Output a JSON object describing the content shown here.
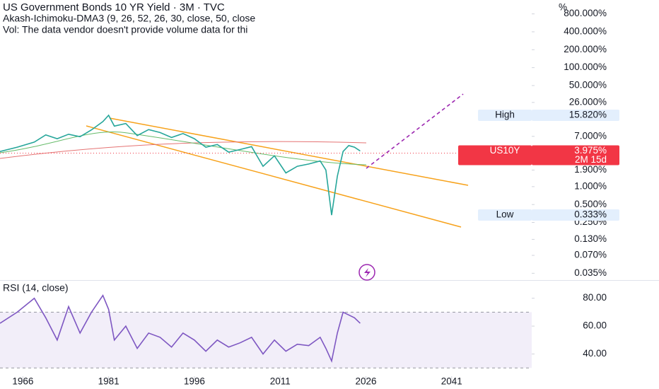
{
  "chart_data": [
    {
      "type": "line",
      "log_scale": true,
      "title": "US Government Bonds 10 YR Yield · 3M · TVC",
      "indicators": [
        "Akash-Ichimoku-DMA3 (9, 26, 52, 26, 30, close, 50, close",
        "Vol: The data vendor doesn't provide volume data for thi"
      ],
      "y_unit": "%",
      "x": [
        1962,
        1965,
        1968,
        1970,
        1972,
        1974,
        1976,
        1978,
        1980,
        1981,
        1982,
        1984,
        1986,
        1988,
        1990,
        1992,
        1994,
        1996,
        1998,
        2000,
        2002,
        2004,
        2006,
        2008,
        2010,
        2012,
        2014,
        2016,
        2018,
        2019,
        2020,
        2021,
        2022,
        2023,
        2024,
        2025
      ],
      "series": [
        {
          "name": "US10Y",
          "color": "#26a69a",
          "values": [
            3.9,
            4.6,
            5.6,
            7.4,
            6.4,
            7.6,
            6.9,
            9.0,
            12.4,
            15.82,
            10.4,
            11.5,
            7.2,
            9.1,
            8.1,
            6.7,
            7.8,
            6.4,
            4.6,
            5.1,
            3.8,
            4.2,
            4.7,
            2.2,
            3.3,
            1.7,
            2.2,
            2.4,
            2.7,
            1.9,
            0.333,
            1.5,
            3.9,
            4.9,
            4.6,
            3.975
          ]
        }
      ],
      "xlim": [
        1962,
        2055
      ],
      "xticks": [
        1966,
        1981,
        1996,
        2011,
        2026,
        2041
      ],
      "ylim": [
        0.03,
        1100
      ],
      "yticks": [
        {
          "value": 800,
          "label": "800.000%"
        },
        {
          "value": 400,
          "label": "400.000%"
        },
        {
          "value": 200,
          "label": "200.000%"
        },
        {
          "value": 100,
          "label": "100.000%"
        },
        {
          "value": 50,
          "label": "50.000%"
        },
        {
          "value": 26,
          "label": "26.000%"
        },
        {
          "value": 7,
          "label": "7.000%"
        },
        {
          "value": 1.9,
          "label": "1.900%"
        },
        {
          "value": 1,
          "label": "1.000%"
        },
        {
          "value": 0.5,
          "label": "0.500%"
        },
        {
          "value": 0.25,
          "label": "0.250%"
        },
        {
          "value": 0.13,
          "label": "0.130%"
        },
        {
          "value": 0.07,
          "label": "0.070%"
        },
        {
          "value": 0.035,
          "label": "0.035%"
        }
      ],
      "price_tags": [
        {
          "label": "High",
          "value": 15.82,
          "value_label": "15.820%",
          "color": "#e3effd"
        },
        {
          "label": "US10Y",
          "value": 3.975,
          "value_label": "3.975%",
          "countdown": "2M 15d",
          "color": "#f23645"
        },
        {
          "label": "Low",
          "value": 0.333,
          "value_label": "0.333%",
          "color": "#e3effd"
        }
      ]
    },
    {
      "type": "line",
      "title": "RSI (14, close)",
      "x": [
        1962,
        1965,
        1968,
        1970,
        1972,
        1974,
        1976,
        1978,
        1980,
        1981,
        1982,
        1984,
        1986,
        1988,
        1990,
        1992,
        1994,
        1996,
        1998,
        2000,
        2002,
        2004,
        2006,
        2008,
        2010,
        2012,
        2014,
        2016,
        2018,
        2019,
        2020,
        2021,
        2022,
        2023,
        2024,
        2025
      ],
      "series": [
        {
          "name": "RSI",
          "color": "#7e57c2",
          "values": [
            62,
            70,
            80,
            66,
            50,
            74,
            55,
            70,
            82,
            72,
            50,
            60,
            44,
            55,
            52,
            45,
            55,
            50,
            42,
            50,
            45,
            48,
            52,
            40,
            50,
            42,
            47,
            46,
            52,
            44,
            35,
            55,
            70,
            68,
            66,
            62
          ]
        }
      ],
      "xlim": [
        1962,
        2055
      ],
      "ylim": [
        22,
        92
      ],
      "yticks": [
        {
          "value": 40,
          "label": "40.00"
        },
        {
          "value": 60,
          "label": "60.00"
        },
        {
          "value": 80,
          "label": "80.00"
        }
      ],
      "bands": [
        30,
        70
      ]
    }
  ]
}
